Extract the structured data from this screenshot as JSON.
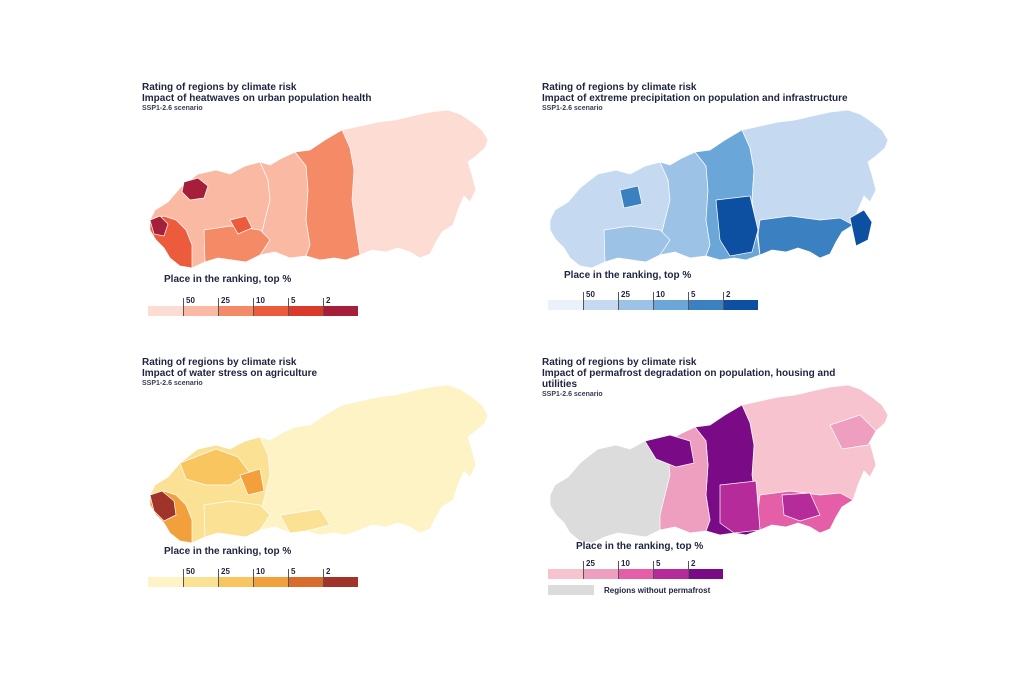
{
  "panels": [
    {
      "title": "Rating of regions by climate risk",
      "subtitle": "Impact of heatwaves on urban population health",
      "scenario": "SSP1-2.6 scenario",
      "legend_title": "Place in the ranking, top %",
      "ticks": [
        "50",
        "25",
        "10",
        "5",
        "2"
      ],
      "colors": {
        "c0": "#fcdcd3",
        "c1": "#f9b9a2",
        "c2": "#f48a66",
        "c3": "#ec5c3c",
        "c4": "#d93a2a",
        "c5": "#a51f3a"
      }
    },
    {
      "title": "Rating of regions by climate risk",
      "subtitle": "Impact of extreme precipitation on population and infrastructure",
      "scenario": "SSP1-2.6 scenario",
      "legend_title": "Place in the ranking, top %",
      "ticks": [
        "50",
        "25",
        "10",
        "5",
        "2"
      ],
      "colors": {
        "c0": "#e9f1fa",
        "c1": "#c5daf0",
        "c2": "#9cc2e5",
        "c3": "#6aa7d8",
        "c4": "#3b81c2",
        "c5": "#0d4fa0"
      }
    },
    {
      "title": "Rating of regions by climate risk",
      "subtitle": "Impact of water stress on agriculture",
      "scenario": "SSP1-2.6 scenario",
      "legend_title": "Place in the ranking, top %",
      "ticks": [
        "50",
        "25",
        "10",
        "5",
        "2"
      ],
      "colors": {
        "c0": "#fdf3c4",
        "c1": "#fbe194",
        "c2": "#f8c55e",
        "c3": "#f2a03b",
        "c4": "#d96b2c",
        "c5": "#a0342a"
      }
    },
    {
      "title": "Rating of regions by climate risk",
      "subtitle": "Impact of permafrost degradation on population, housing and utilities",
      "scenario": "SSP1-2.6 scenario",
      "legend_title": "Place in the ranking, top %",
      "ticks": [
        "25",
        "10",
        "5",
        "2"
      ],
      "nodata_label": "Regions without permafrost",
      "colors": {
        "c0": "#f6c3cf",
        "c1": "#ee9ebf",
        "c2": "#e55ea8",
        "c3": "#b52b9a",
        "c4": "#7b0a87",
        "nodata": "#dcdcdc"
      }
    }
  ]
}
